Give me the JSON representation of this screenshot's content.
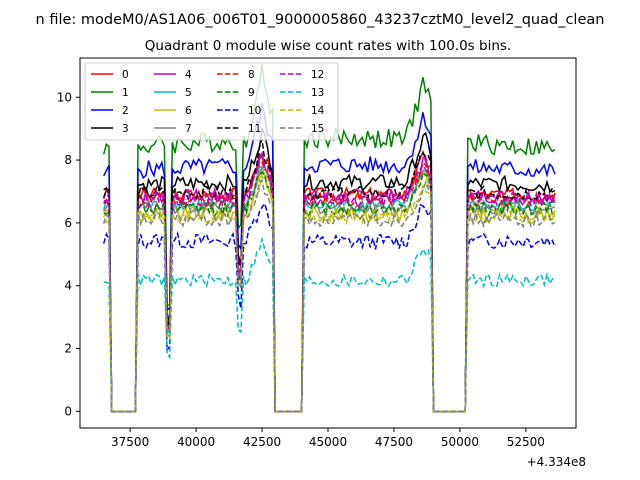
{
  "chart_data": {
    "type": "line",
    "title_line1": "n file: modeM0/AS1A06_006T01_9000005860_43237cztM0_level2_quad_clean",
    "title_line2": "Quadrant 0 module wise count rates with 100.0s bins.",
    "xlabel": "",
    "ylabel": "",
    "x_offset_label": "+4.334e8",
    "x_offset": 433400000,
    "xlim": [
      35600,
      54400
    ],
    "ylim": [
      -0.53,
      11.25
    ],
    "x_ticks": [
      37500,
      40000,
      42500,
      45000,
      47500,
      50000,
      52500
    ],
    "x_tick_labels": [
      "37500",
      "40000",
      "42500",
      "45000",
      "47500",
      "50000",
      "52500"
    ],
    "y_ticks": [
      0,
      2,
      4,
      6,
      8,
      10
    ],
    "y_tick_labels": [
      "0",
      "2",
      "4",
      "6",
      "8",
      "10"
    ],
    "grid": false,
    "legend_position": "top-left",
    "legend_columns": 4,
    "x_range_data": [
      36500,
      53600
    ],
    "gap_intervals": [
      [
        36700,
        37800
      ],
      [
        42900,
        44100
      ],
      [
        48900,
        50300
      ]
    ],
    "dip_center": 38950,
    "dip2_center": 41650,
    "series": [
      {
        "name": "0",
        "color": "#ff0000",
        "dash": "solid",
        "level": 6.9,
        "noise": 0.22,
        "peak": 1.4,
        "trend": 0.0
      },
      {
        "name": "1",
        "color": "#008000",
        "dash": "solid",
        "level": 8.35,
        "noise": 0.32,
        "peak": 2.1,
        "trend": 0.35
      },
      {
        "name": "2",
        "color": "#0000ff",
        "dash": "solid",
        "level": 7.65,
        "noise": 0.28,
        "peak": 1.8,
        "trend": 0.2
      },
      {
        "name": "3",
        "color": "#000000",
        "dash": "solid",
        "level": 7.2,
        "noise": 0.25,
        "peak": 1.6,
        "trend": 0.1
      },
      {
        "name": "4",
        "color": "#bf00bf",
        "dash": "solid",
        "level": 6.85,
        "noise": 0.22,
        "peak": 1.3,
        "trend": 0.0
      },
      {
        "name": "5",
        "color": "#00bfbf",
        "dash": "solid",
        "level": 6.55,
        "noise": 0.2,
        "peak": 1.2,
        "trend": 0.0
      },
      {
        "name": "6",
        "color": "#bfbf00",
        "dash": "solid",
        "level": 6.3,
        "noise": 0.25,
        "peak": 1.4,
        "trend": 0.0
      },
      {
        "name": "7",
        "color": "#808080",
        "dash": "solid",
        "level": 6.5,
        "noise": 0.22,
        "peak": 1.3,
        "trend": 0.0
      },
      {
        "name": "8",
        "color": "#ff0000",
        "dash": "dashed",
        "level": 6.75,
        "noise": 0.22,
        "peak": 1.3,
        "trend": 0.0
      },
      {
        "name": "9",
        "color": "#008000",
        "dash": "dashed",
        "level": 6.45,
        "noise": 0.22,
        "peak": 1.3,
        "trend": 0.0
      },
      {
        "name": "10",
        "color": "#0000ff",
        "dash": "dashed",
        "level": 5.45,
        "noise": 0.25,
        "peak": 1.3,
        "trend": -0.05
      },
      {
        "name": "11",
        "color": "#000000",
        "dash": "dashed",
        "level": 6.95,
        "noise": 0.22,
        "peak": 1.5,
        "trend": 0.0
      },
      {
        "name": "12",
        "color": "#bf00bf",
        "dash": "dashed",
        "level": 6.75,
        "noise": 0.22,
        "peak": 1.3,
        "trend": 0.0
      },
      {
        "name": "13",
        "color": "#00bfbf",
        "dash": "dashed",
        "level": 4.2,
        "noise": 0.2,
        "peak": 1.2,
        "trend": -0.05
      },
      {
        "name": "14",
        "color": "#bfbf00",
        "dash": "dashed",
        "level": 6.2,
        "noise": 0.22,
        "peak": 1.2,
        "trend": 0.0
      },
      {
        "name": "15",
        "color": "#808080",
        "dash": "dashed",
        "level": 6.1,
        "noise": 0.22,
        "peak": 1.2,
        "trend": 0.0
      }
    ]
  }
}
